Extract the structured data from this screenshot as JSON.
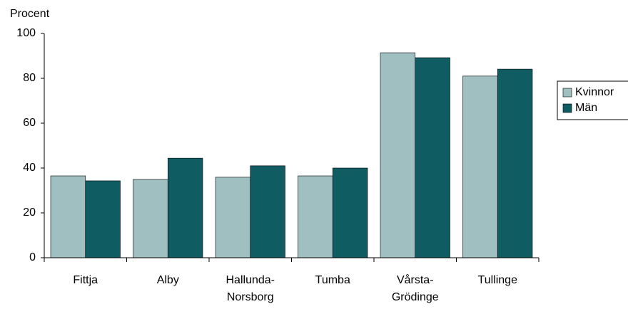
{
  "chart_data": {
    "type": "bar",
    "y_label": "Procent",
    "categories": [
      "Fittja",
      "Alby",
      "Hallunda-\nNorsborg",
      "Tumba",
      "Vårsta-\nGrödinge",
      "Tullinge"
    ],
    "series": [
      {
        "name": "Kvinnor",
        "color": "#9fbfc0",
        "values": [
          36.5,
          34.9,
          35.9,
          36.5,
          91.4,
          81
        ]
      },
      {
        "name": "Män",
        "color": "#0f5c63",
        "values": [
          34.3,
          44.4,
          41,
          40,
          89.2,
          84.1
        ]
      }
    ],
    "ylim": [
      0,
      100
    ],
    "yticks": [
      0,
      20,
      40,
      60,
      80,
      100
    ],
    "legend": "right"
  }
}
